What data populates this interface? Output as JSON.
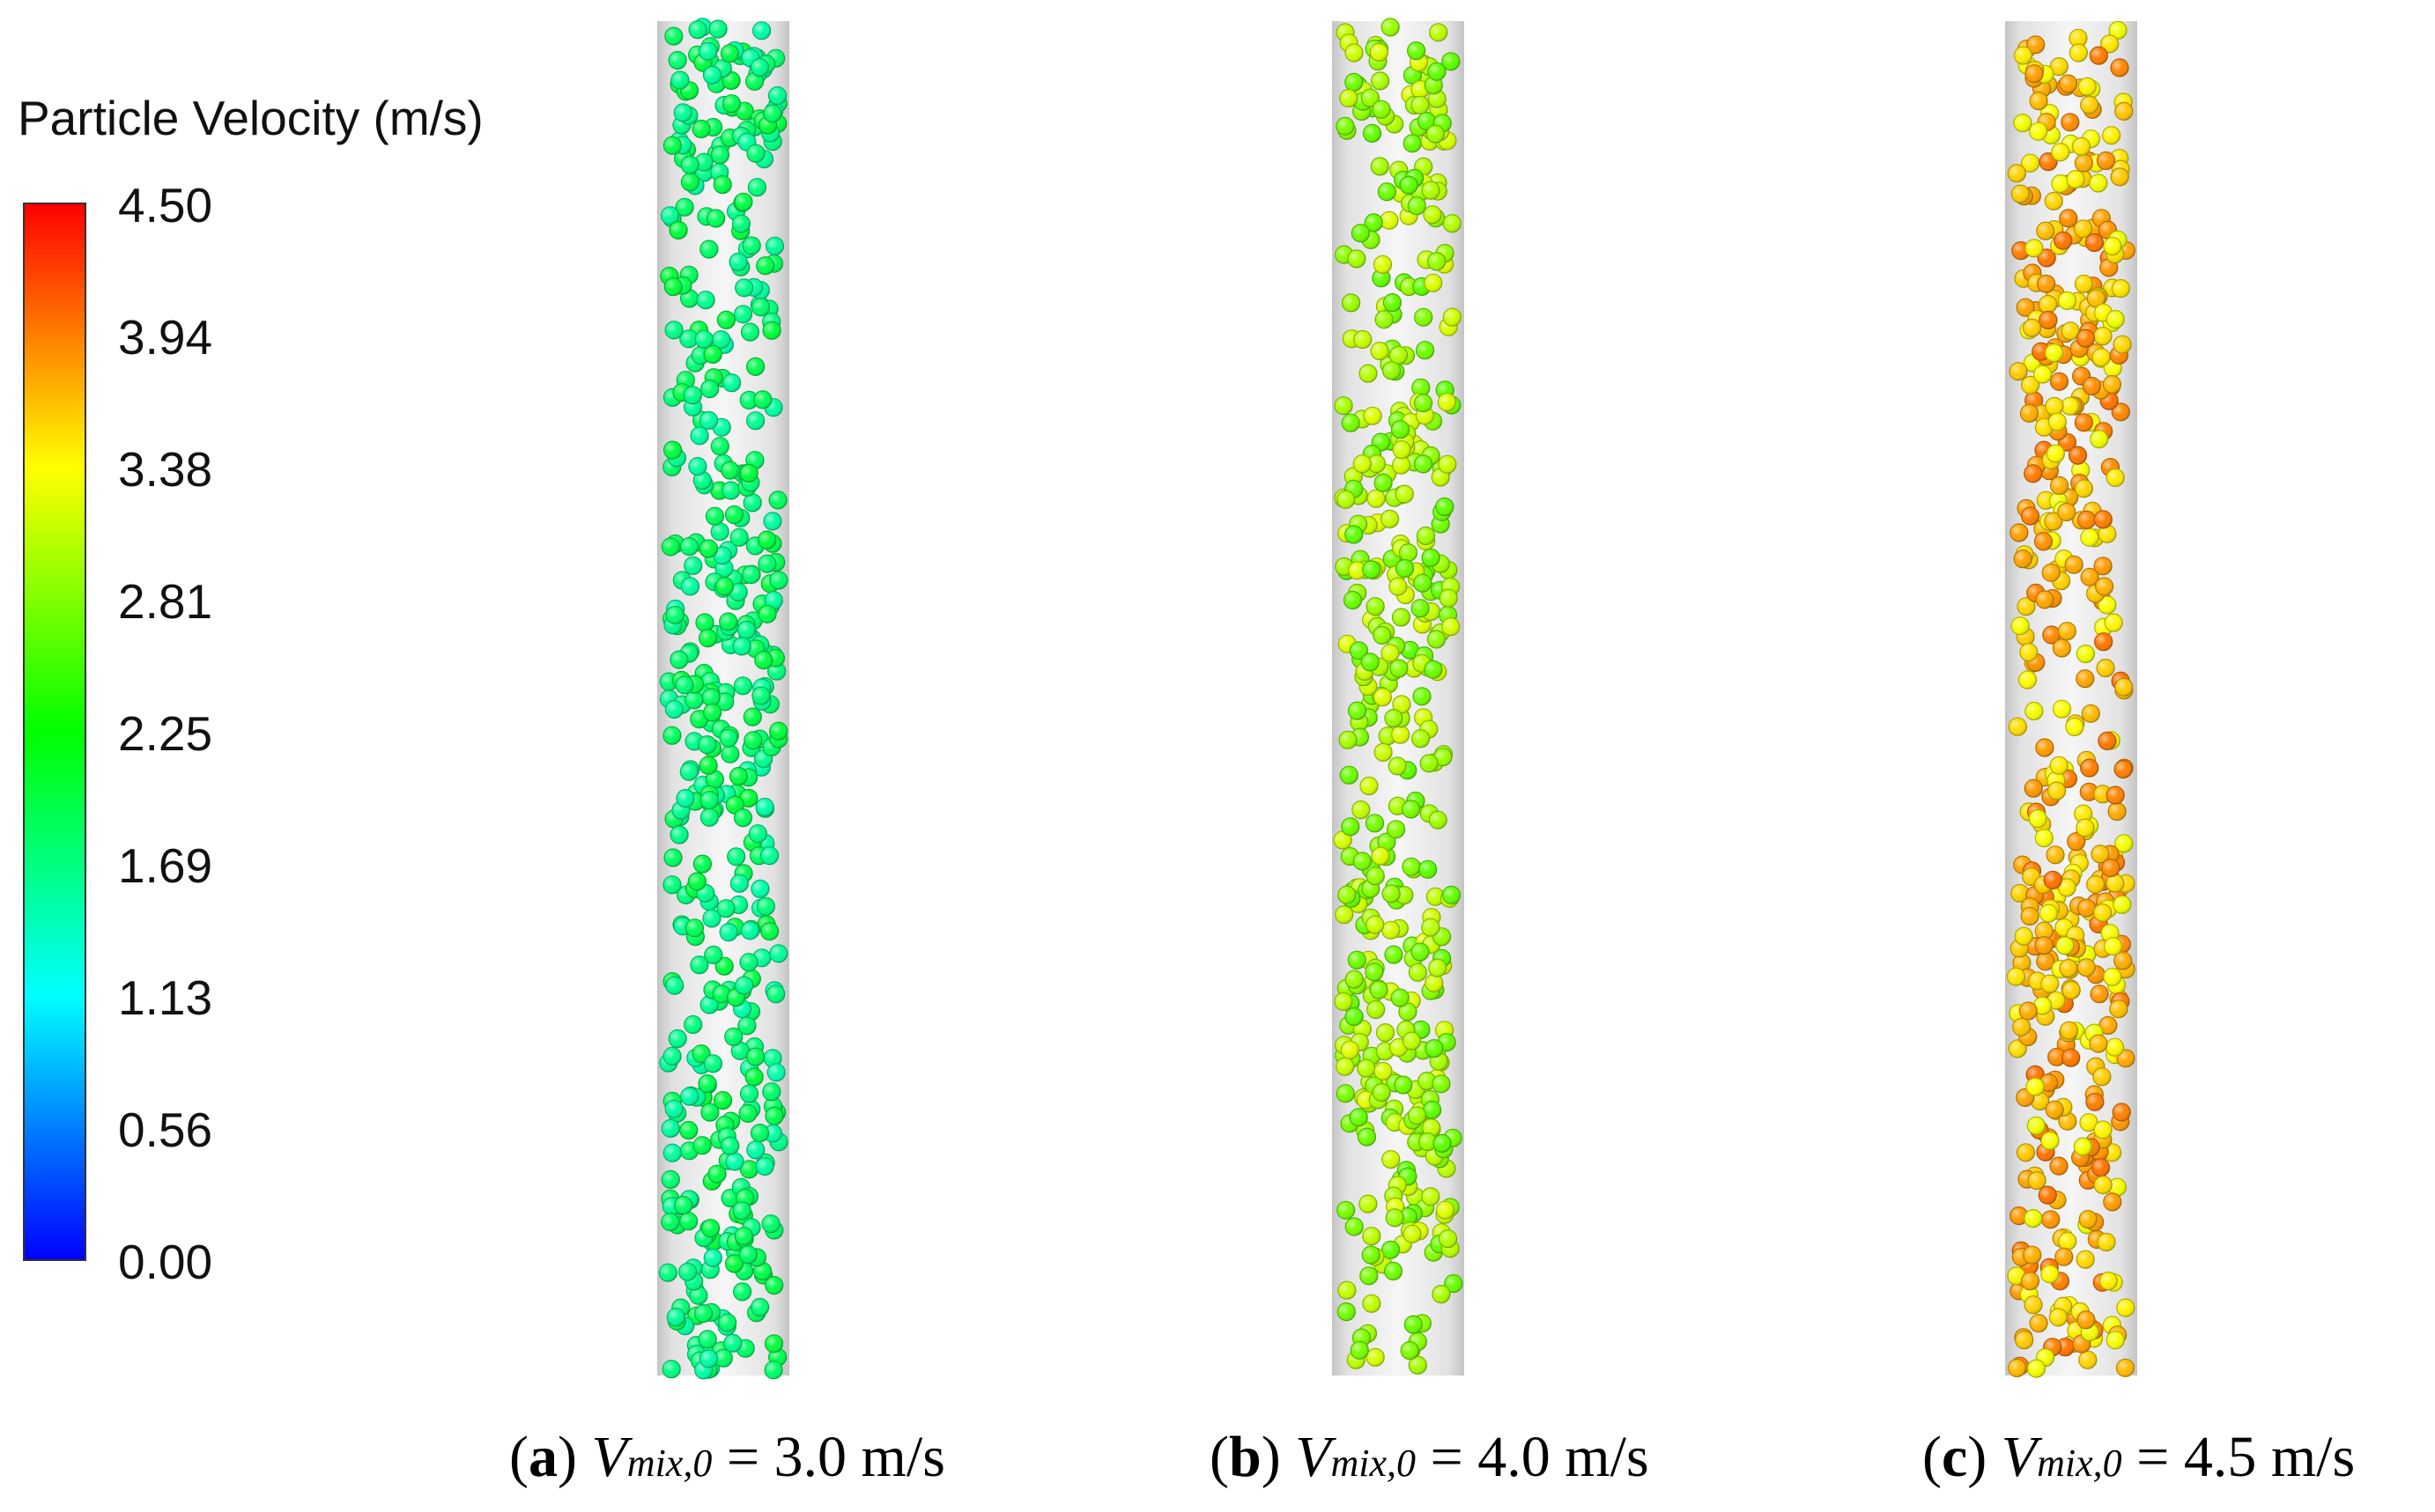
{
  "legend": {
    "title": "Particle Velocity (m/s)",
    "ticks": [
      "4.50",
      "3.94",
      "3.38",
      "2.81",
      "2.25",
      "1.69",
      "1.13",
      "0.56",
      "0.00"
    ],
    "range": [
      0.0,
      4.5
    ],
    "colormap": [
      "#0000ff",
      "#00ffff",
      "#00ff00",
      "#ffff00",
      "#ff0000"
    ]
  },
  "panels": [
    {
      "id": "a",
      "letter": "a",
      "var": "V",
      "sub": "mix,0",
      "value_text": " = 3.0 m/s",
      "mean_velocity": 1.75,
      "spread": 0.25,
      "seed": 11
    },
    {
      "id": "b",
      "letter": "b",
      "var": "V",
      "sub": "mix,0",
      "value_text": " = 4.0 m/s",
      "mean_velocity": 2.95,
      "spread": 0.3,
      "seed": 23
    },
    {
      "id": "c",
      "letter": "c",
      "var": "V",
      "sub": "mix,0",
      "value_text": " = 4.5 m/s",
      "mean_velocity": 3.65,
      "spread": 0.35,
      "seed": 37
    }
  ],
  "colors": {
    "pipe_edge": "#c8c8c8",
    "pipe_center": "#f4f4f4",
    "text": "#111111"
  }
}
